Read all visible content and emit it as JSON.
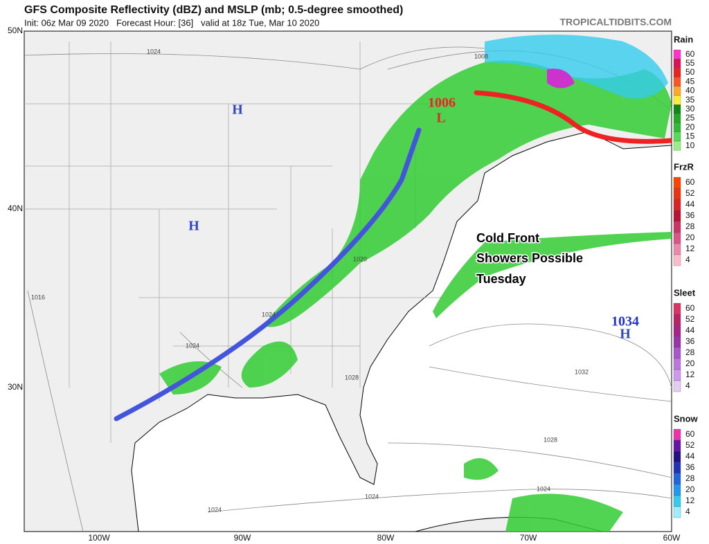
{
  "header": {
    "title": "GFS Composite Reflectivity (dBZ) and MSLP (mb; 0.5-degree smoothed)",
    "subtitle": "Init: 06z Mar 09 2020   Forecast Hour: [36]   valid at 18z Tue, Mar 10 2020",
    "site": "TROPICALTIDBITS.COM"
  },
  "map": {
    "lat_labels": [
      "50N",
      "40N",
      "30N"
    ],
    "lon_labels": [
      "100W",
      "90W",
      "80W",
      "70W",
      "60W"
    ],
    "annotation": [
      "Cold Front",
      "Showers Possible",
      "Tuesday"
    ],
    "low": {
      "pressure": "1006",
      "symbol": "L"
    },
    "highs": [
      {
        "symbol": "H"
      },
      {
        "symbol": "H"
      },
      {
        "pressure": "1034",
        "symbol": "H"
      }
    ],
    "isobar_labels": [
      "1024",
      "1008",
      "1016",
      "1020",
      "1024",
      "1024",
      "1028",
      "1032",
      "1028",
      "1024",
      "1024",
      "1024"
    ]
  },
  "legend": [
    {
      "title": "Rain",
      "labels": [
        "60",
        "55",
        "50",
        "45",
        "40",
        "35",
        "30",
        "25",
        "20",
        "15",
        "10"
      ]
    },
    {
      "title": "FrzR",
      "labels": [
        "60",
        "52",
        "44",
        "36",
        "28",
        "20",
        "12",
        "4"
      ]
    },
    {
      "title": "Sleet",
      "labels": [
        "60",
        "52",
        "44",
        "36",
        "28",
        "20",
        "12",
        "4"
      ]
    },
    {
      "title": "Snow",
      "labels": [
        "60",
        "52",
        "44",
        "36",
        "28",
        "20",
        "12",
        "4"
      ]
    }
  ]
}
